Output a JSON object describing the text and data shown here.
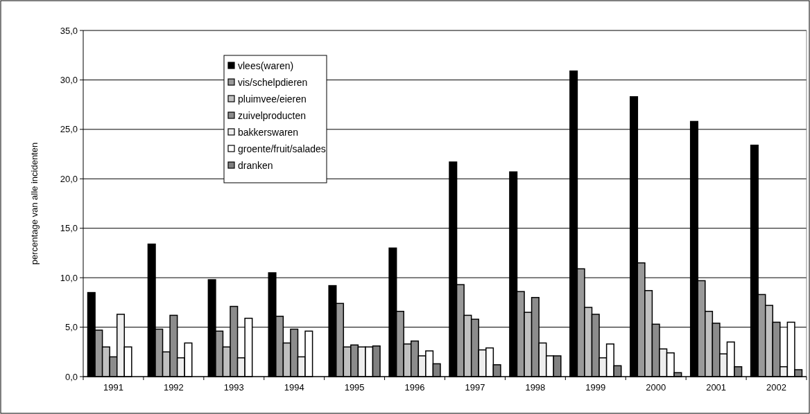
{
  "chart_data": {
    "type": "bar",
    "ylabel": "percentage van alle incidenten",
    "categories": [
      "1991",
      "1992",
      "1993",
      "1994",
      "1995",
      "1996",
      "1997",
      "1998",
      "1999",
      "2000",
      "2001",
      "2002"
    ],
    "series": [
      {
        "name": "vlees(waren)",
        "color": "#000000",
        "values": [
          8.5,
          13.4,
          9.8,
          10.5,
          9.2,
          13.0,
          21.7,
          20.7,
          30.9,
          28.3,
          25.8,
          23.4
        ]
      },
      {
        "name": "vis/schelpdieren",
        "color": "#999999",
        "values": [
          4.7,
          4.8,
          4.6,
          6.1,
          7.4,
          6.6,
          9.3,
          8.6,
          10.9,
          11.5,
          9.7,
          8.3
        ]
      },
      {
        "name": "pluimvee/eieren",
        "color": "#c0c0c0",
        "values": [
          3.0,
          2.5,
          3.0,
          3.4,
          3.0,
          3.3,
          6.2,
          6.5,
          7.0,
          8.7,
          6.6,
          7.2
        ]
      },
      {
        "name": "zuivelproducten",
        "color": "#8c8c8c",
        "values": [
          2.0,
          6.2,
          7.1,
          4.8,
          3.2,
          3.6,
          5.8,
          8.0,
          6.3,
          5.3,
          5.4,
          5.5
        ]
      },
      {
        "name": "bakkerswaren",
        "color": "#eeeeee",
        "values": [
          6.3,
          1.9,
          1.9,
          2.0,
          3.0,
          2.1,
          2.7,
          3.4,
          1.9,
          2.8,
          2.3,
          1.0
        ]
      },
      {
        "name": "groente/fruit/salades",
        "color": "#ffffff",
        "values": [
          3.0,
          3.4,
          5.9,
          4.6,
          3.0,
          2.6,
          2.9,
          2.1,
          3.3,
          2.4,
          3.5,
          5.5
        ]
      },
      {
        "name": "dranken",
        "color": "#808080",
        "values": [
          null,
          null,
          null,
          null,
          3.1,
          1.3,
          1.2,
          2.1,
          1.1,
          0.4,
          1.0,
          0.7
        ]
      }
    ],
    "ylim": [
      0,
      35
    ],
    "yticks": [
      {
        "value": 0,
        "label": "0,0"
      },
      {
        "value": 5,
        "label": "5,0"
      },
      {
        "value": 10,
        "label": "10,0"
      },
      {
        "value": 15,
        "label": "15,0"
      },
      {
        "value": 20,
        "label": "20,0"
      },
      {
        "value": 25,
        "label": "25,0"
      },
      {
        "value": 30,
        "label": "30,0"
      },
      {
        "value": 35,
        "label": "35,0"
      }
    ],
    "grid": "y",
    "legend": "top left"
  }
}
